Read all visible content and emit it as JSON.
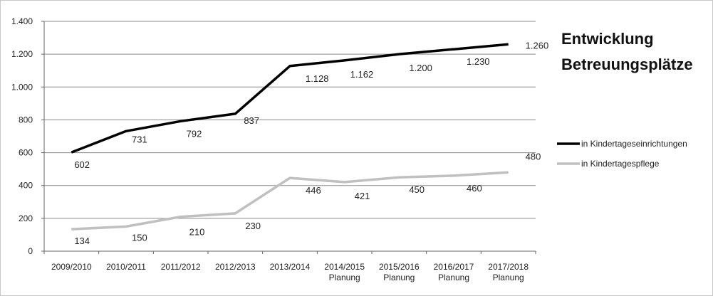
{
  "chart_data": {
    "type": "line",
    "title": [
      "Entwicklung",
      "Betreuungsplätze"
    ],
    "categories": [
      [
        "2009/2010"
      ],
      [
        "2010/2011"
      ],
      [
        "2011/2012"
      ],
      [
        "2012/2013"
      ],
      [
        "2013/2014"
      ],
      [
        "2014/2015",
        "Planung"
      ],
      [
        "2015/2016",
        "Planung"
      ],
      [
        "2016/2017",
        "Planung"
      ],
      [
        "2017/2018",
        "Planung"
      ]
    ],
    "series": [
      {
        "name": "in Kindertageseinrichtungen",
        "color": "#000000",
        "values": [
          602,
          731,
          792,
          837,
          1128,
          1162,
          1200,
          1230,
          1260
        ],
        "labels": [
          "602",
          "731",
          "792",
          "837",
          "1.128",
          "1.162",
          "1.200",
          "1.230",
          "1.260"
        ]
      },
      {
        "name": "in Kindertagespflege",
        "color": "#c0c0c0",
        "values": [
          134,
          150,
          210,
          230,
          446,
          421,
          450,
          460,
          480
        ],
        "labels": [
          "134",
          "150",
          "210",
          "230",
          "446",
          "421",
          "450",
          "460",
          "480"
        ]
      }
    ],
    "ylim": [
      0,
      1400
    ],
    "yticks": [
      0,
      200,
      400,
      600,
      800,
      1000,
      1200,
      1400
    ],
    "ytick_labels": [
      "0",
      "200",
      "400",
      "600",
      "800",
      "1.000",
      "1.200",
      "1.400"
    ],
    "grid": true,
    "legend_position": "right",
    "xlabel": "",
    "ylabel": ""
  }
}
